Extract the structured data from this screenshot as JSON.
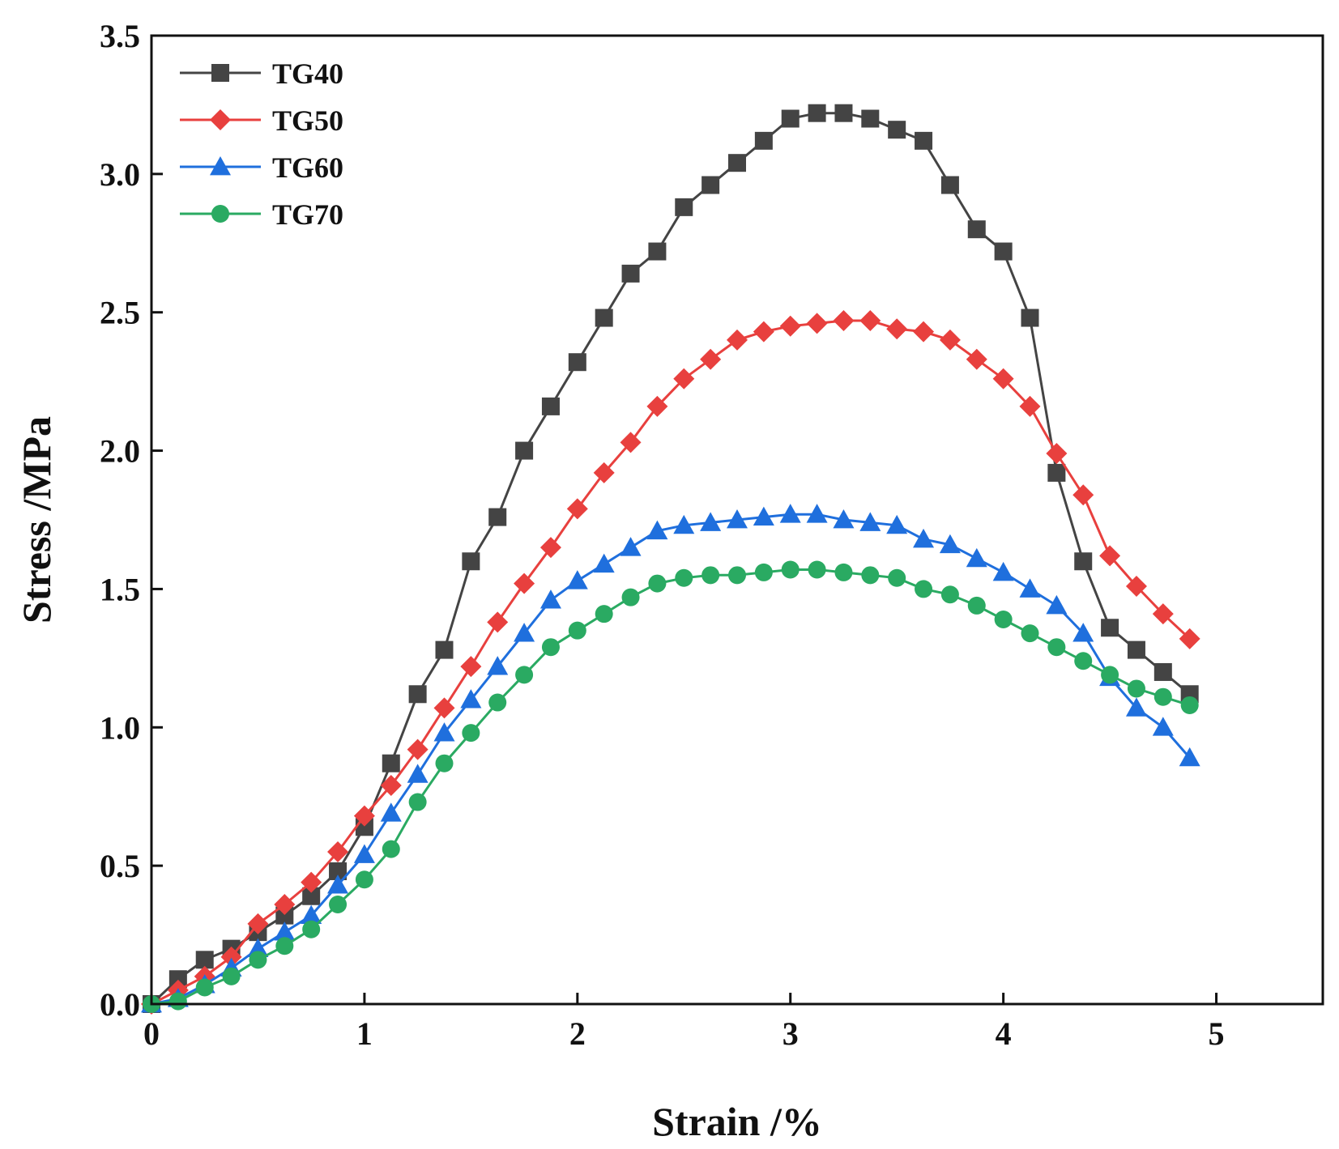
{
  "chart_data": {
    "type": "line",
    "title": "",
    "xlabel": "Strain /%",
    "ylabel": "Stress /MPa",
    "xlim": [
      0,
      5.5
    ],
    "ylim": [
      0,
      3.5
    ],
    "xticks": [
      0,
      1,
      2,
      3,
      4,
      5
    ],
    "xtick_labels": [
      "0",
      "1",
      "2",
      "3",
      "4",
      "5"
    ],
    "yticks": [
      0,
      0.5,
      1,
      1.5,
      2,
      2.5,
      3,
      3.5
    ],
    "ytick_labels": [
      "0.0",
      "0.5",
      "1.0",
      "1.5",
      "2.0",
      "2.5",
      "3.0",
      "3.5"
    ],
    "grid": false,
    "legend_position": "top-left",
    "x": [
      0,
      0.125,
      0.25,
      0.375,
      0.5,
      0.625,
      0.75,
      0.875,
      1.0,
      1.125,
      1.25,
      1.375,
      1.5,
      1.625,
      1.75,
      1.875,
      2.0,
      2.125,
      2.25,
      2.375,
      2.5,
      2.625,
      2.75,
      2.875,
      3.0,
      3.125,
      3.25,
      3.375,
      3.5,
      3.625,
      3.75,
      3.875,
      4.0,
      4.125,
      4.25,
      4.375,
      4.5,
      4.625,
      4.75,
      4.875
    ],
    "series": [
      {
        "name": "TG40",
        "color": "#444444",
        "marker": "square",
        "values": [
          0,
          0.09,
          0.16,
          0.2,
          0.26,
          0.32,
          0.39,
          0.48,
          0.64,
          0.87,
          1.12,
          1.28,
          1.6,
          1.76,
          2.0,
          2.16,
          2.32,
          2.48,
          2.64,
          2.72,
          2.88,
          2.96,
          3.04,
          3.12,
          3.2,
          3.22,
          3.22,
          3.2,
          3.16,
          3.12,
          2.96,
          2.8,
          2.72,
          2.48,
          1.92,
          1.6,
          1.36,
          1.28,
          1.2,
          1.12
        ]
      },
      {
        "name": "TG50",
        "color": "#e8403e",
        "marker": "diamond",
        "values": [
          0,
          0.05,
          0.1,
          0.17,
          0.29,
          0.36,
          0.44,
          0.55,
          0.68,
          0.79,
          0.92,
          1.07,
          1.22,
          1.38,
          1.52,
          1.65,
          1.79,
          1.92,
          2.03,
          2.16,
          2.26,
          2.33,
          2.4,
          2.43,
          2.45,
          2.46,
          2.47,
          2.47,
          2.44,
          2.43,
          2.4,
          2.33,
          2.26,
          2.16,
          1.99,
          1.84,
          1.62,
          1.51,
          1.41,
          1.32
        ]
      },
      {
        "name": "TG60",
        "color": "#1f6fdd",
        "marker": "triangle",
        "values": [
          0,
          0.02,
          0.07,
          0.13,
          0.2,
          0.26,
          0.32,
          0.43,
          0.54,
          0.69,
          0.83,
          0.98,
          1.1,
          1.22,
          1.34,
          1.46,
          1.53,
          1.59,
          1.65,
          1.71,
          1.73,
          1.74,
          1.75,
          1.76,
          1.77,
          1.77,
          1.75,
          1.74,
          1.73,
          1.68,
          1.66,
          1.61,
          1.56,
          1.5,
          1.44,
          1.34,
          1.18,
          1.07,
          1.0,
          0.89
        ]
      },
      {
        "name": "TG70",
        "color": "#2aaa62",
        "marker": "circle",
        "values": [
          0,
          0.01,
          0.06,
          0.1,
          0.16,
          0.21,
          0.27,
          0.36,
          0.45,
          0.56,
          0.73,
          0.87,
          0.98,
          1.09,
          1.19,
          1.29,
          1.35,
          1.41,
          1.47,
          1.52,
          1.54,
          1.55,
          1.55,
          1.56,
          1.57,
          1.57,
          1.56,
          1.55,
          1.54,
          1.5,
          1.48,
          1.44,
          1.39,
          1.34,
          1.29,
          1.24,
          1.19,
          1.14,
          1.11,
          1.08
        ]
      }
    ]
  }
}
